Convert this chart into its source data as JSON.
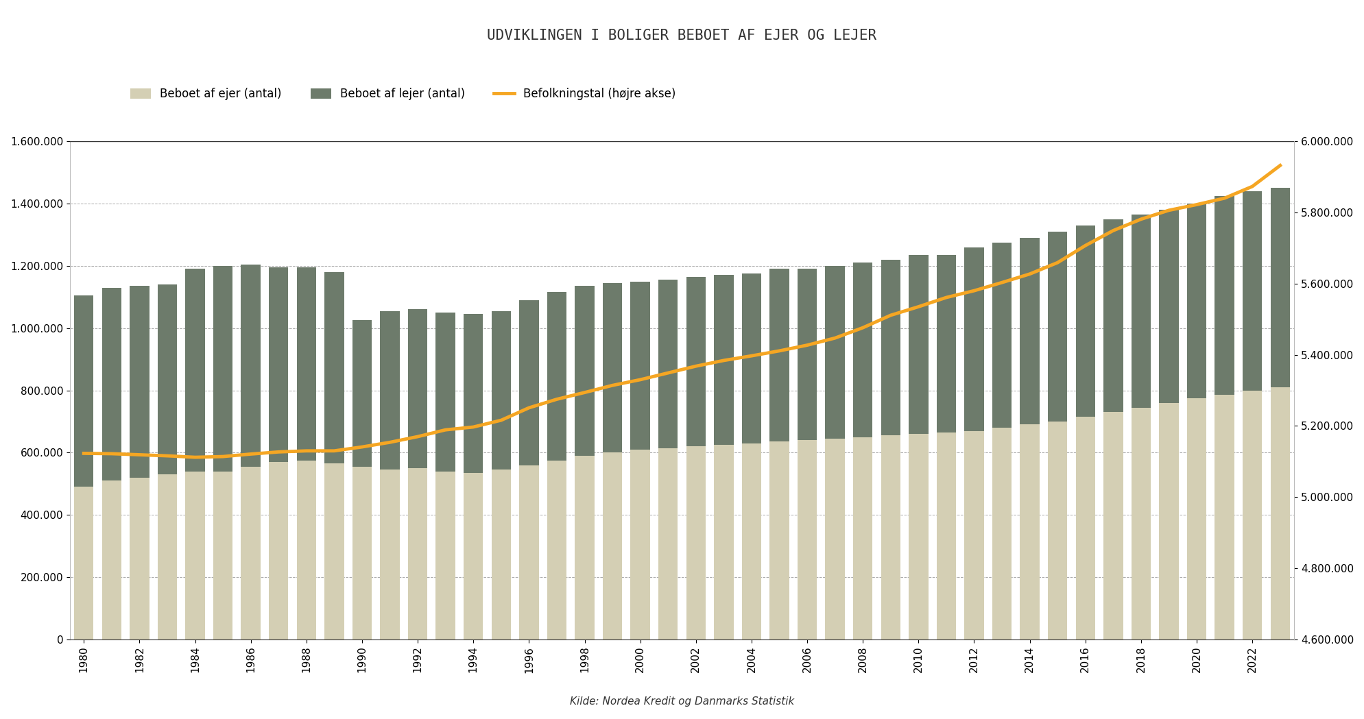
{
  "title": "UDVIKLINGEN I BOLIGER BEBOET AF EJER OG LEJER",
  "subtitle": "Kilde: Nordea Kredit og Danmarks Statistik",
  "years": [
    1980,
    1981,
    1982,
    1983,
    1984,
    1985,
    1986,
    1987,
    1988,
    1989,
    1990,
    1991,
    1992,
    1993,
    1994,
    1995,
    1996,
    1997,
    1998,
    1999,
    2000,
    2001,
    2002,
    2003,
    2004,
    2005,
    2006,
    2007,
    2008,
    2009,
    2010,
    2011,
    2012,
    2013,
    2014,
    2015,
    2016,
    2017,
    2018,
    2019,
    2020,
    2021,
    2022,
    2023
  ],
  "ejer": [
    490000,
    510000,
    520000,
    530000,
    540000,
    540000,
    555000,
    570000,
    575000,
    565000,
    555000,
    545000,
    550000,
    540000,
    535000,
    545000,
    560000,
    575000,
    590000,
    600000,
    610000,
    615000,
    620000,
    625000,
    630000,
    635000,
    640000,
    645000,
    650000,
    655000,
    660000,
    665000,
    670000,
    680000,
    690000,
    700000,
    715000,
    730000,
    745000,
    760000,
    775000,
    785000,
    800000,
    810000
  ],
  "lejer": [
    615000,
    620000,
    615000,
    610000,
    650000,
    660000,
    650000,
    625000,
    620000,
    615000,
    470000,
    510000,
    510000,
    510000,
    510000,
    510000,
    530000,
    540000,
    545000,
    545000,
    540000,
    540000,
    545000,
    545000,
    545000,
    555000,
    550000,
    555000,
    560000,
    565000,
    575000,
    570000,
    590000,
    595000,
    600000,
    610000,
    615000,
    620000,
    620000,
    620000,
    625000,
    640000,
    640000,
    640000
  ],
  "befolkning": [
    5123000,
    5122000,
    5119000,
    5116000,
    5112000,
    5114000,
    5121000,
    5127000,
    5130000,
    5130000,
    5141000,
    5154000,
    5170000,
    5189000,
    5197000,
    5216000,
    5251000,
    5275000,
    5294000,
    5314000,
    5330000,
    5349000,
    5368000,
    5384000,
    5397000,
    5411000,
    5427000,
    5447000,
    5476000,
    5511000,
    5535000,
    5561000,
    5580000,
    5603000,
    5627000,
    5659000,
    5707000,
    5749000,
    5781000,
    5806000,
    5822000,
    5840000,
    5873000,
    5932000
  ],
  "ejer_color": "#d4cfb4",
  "lejer_color": "#6d7b6b",
  "befolkning_color": "#f5a623",
  "background_color": "#ffffff",
  "ylim_left": [
    0,
    1600000
  ],
  "ylim_right": [
    4600000,
    6000000
  ],
  "yticks_left": [
    0,
    200000,
    400000,
    600000,
    800000,
    1000000,
    1200000,
    1400000,
    1600000
  ],
  "yticks_right": [
    4600000,
    4800000,
    5000000,
    5200000,
    5400000,
    5600000,
    5800000,
    6000000
  ],
  "legend_ejer": "Beboet af ejer (antal)",
  "legend_lejer": "Beboet af lejer (antal)",
  "legend_befolkning": "Befolkningstal (højre akse)",
  "title_fontsize": 15,
  "tick_fontsize": 11,
  "legend_fontsize": 12
}
